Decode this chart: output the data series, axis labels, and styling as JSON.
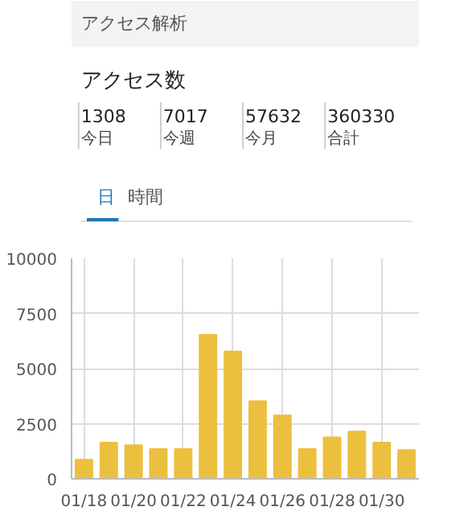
{
  "chart_data": [
    {
      "type": "other",
      "title": "アクセス解析",
      "subtitle": "アクセス数",
      "annotations": [
        "1308",
        "今日",
        "7017",
        "今週",
        "57632",
        "今月",
        "360330",
        "合計",
        "日",
        "時間"
      ]
    },
    {
      "type": "bar",
      "categories": [
        "01/18",
        null,
        "01/20",
        null,
        "01/22",
        null,
        "01/24",
        null,
        "01/26",
        null,
        "01/28",
        null,
        "01/30",
        null
      ],
      "values": [
        870,
        1640,
        1520,
        1350,
        1350,
        6530,
        5780,
        3520,
        2870,
        1350,
        1880,
        2140,
        1640,
        1308
      ],
      "color": "#ecc03f",
      "ylim": [
        0,
        10000
      ],
      "yticks": [
        0,
        2500,
        5000,
        7500,
        10000
      ],
      "grid": true
    }
  ]
}
